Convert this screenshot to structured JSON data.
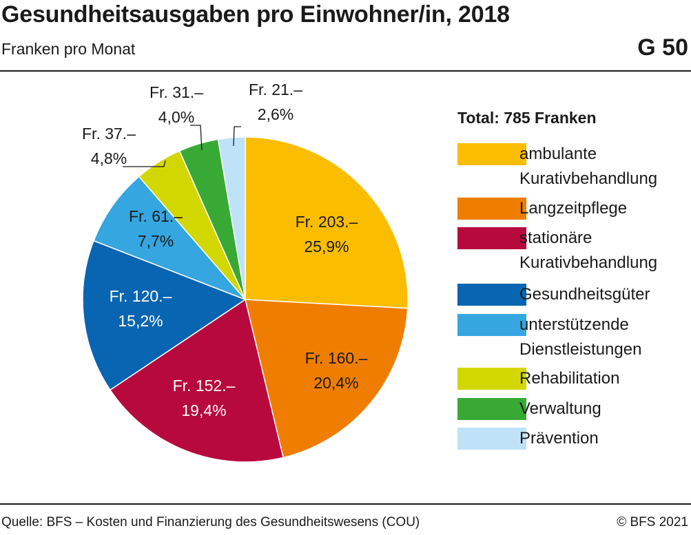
{
  "header": {
    "title": "Gesundheitsausgaben pro Einwohner/in, 2018",
    "subtitle": "Franken pro Monat",
    "chart_id": "G 50"
  },
  "footer": {
    "source": "Quelle: BFS – Kosten und Finanzierung des Gesundheitswesens (COU)",
    "copyright": "© BFS 2021"
  },
  "chart_data": {
    "type": "pie",
    "title": "Gesundheitsausgaben pro Einwohner/in, 2018",
    "subtitle": "Franken pro Monat",
    "legend_title": "Total: 785 Franken",
    "legend_position": "right",
    "start_angle_deg": 0,
    "direction": "clockwise",
    "slices": [
      {
        "name": "ambulante Kurativbehandlung",
        "legend_label": "ambulante\nKurativbehandlung",
        "value": 203,
        "percent": 25.9,
        "value_label": "Fr. 203.–",
        "percent_label": "25,9%",
        "color": "#fbbd00"
      },
      {
        "name": "Langzeitpflege",
        "legend_label": "Langzeitpflege",
        "value": 160,
        "percent": 20.4,
        "value_label": "Fr. 160.–",
        "percent_label": "20,4%",
        "color": "#ef7d00"
      },
      {
        "name": "stationäre Kurativbehandlung",
        "legend_label": "stationäre\nKurativbehandlung",
        "value": 152,
        "percent": 19.4,
        "value_label": "Fr. 152.–",
        "percent_label": "19,4%",
        "color": "#b8093f"
      },
      {
        "name": "Gesundheitsgüter",
        "legend_label": "Gesundheitsgüter",
        "value": 120,
        "percent": 15.2,
        "value_label": "Fr. 120.–",
        "percent_label": "15,2%",
        "color": "#0865b1"
      },
      {
        "name": "unterstützende Dienstleistungen",
        "legend_label": "unterstützende\nDienstleistungen",
        "value": 61,
        "percent": 7.7,
        "value_label": "Fr. 61.–",
        "percent_label": "7,7%",
        "color": "#35a6e0"
      },
      {
        "name": "Rehabilitation",
        "legend_label": "Rehabilitation",
        "value": 37,
        "percent": 4.8,
        "value_label": "Fr. 37.–",
        "percent_label": "4,8%",
        "color": "#d3d700"
      },
      {
        "name": "Verwaltung",
        "legend_label": "Verwaltung",
        "value": 31,
        "percent": 4.0,
        "value_label": "Fr. 31.–",
        "percent_label": "4,0%",
        "color": "#38a935"
      },
      {
        "name": "Prävention",
        "legend_label": "Prävention",
        "value": 21,
        "percent": 2.6,
        "value_label": "Fr. 21.–",
        "percent_label": "2,6%",
        "color": "#bfe2f8"
      }
    ]
  }
}
